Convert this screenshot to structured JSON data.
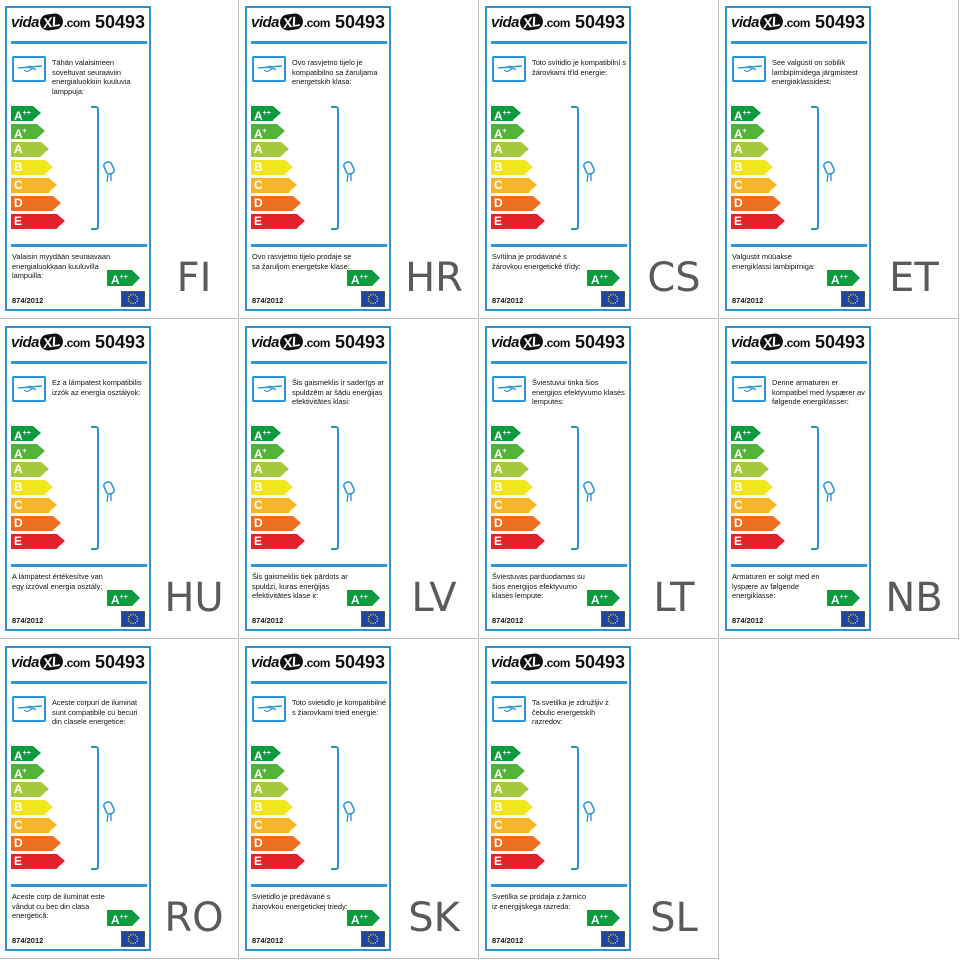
{
  "brand": {
    "prefix": "vida",
    "mark": "XL",
    "suffix": ".com"
  },
  "product_code": "50493",
  "regulation": "874/2012",
  "classes": [
    {
      "letter": "A",
      "sup": "++",
      "color": "#0a9b3c"
    },
    {
      "letter": "A",
      "sup": "+",
      "color": "#51b33a"
    },
    {
      "letter": "A",
      "sup": "",
      "color": "#a4c93b"
    },
    {
      "letter": "B",
      "sup": "",
      "color": "#f0e51f"
    },
    {
      "letter": "C",
      "sup": "",
      "color": "#f4b526"
    },
    {
      "letter": "D",
      "sup": "",
      "color": "#ec6f1f"
    },
    {
      "letter": "E",
      "sup": "",
      "color": "#e3222a"
    }
  ],
  "sold_class": {
    "letter": "A",
    "sup": "++"
  },
  "colors": {
    "frame": "#2a93d5",
    "eu_flag": "#1d44a8",
    "eu_stars": "#ffd400"
  },
  "labels": [
    {
      "lang": "FI",
      "intro": "Tähän valaisimeen soveltuvat seuraaviin energialuokkiin kuuluvia lamppuja:",
      "sold": "Valaisin myydään seuraavaan energialuokkaan kuuluvilla lampuilla:"
    },
    {
      "lang": "HR",
      "intro": "Ovo rasvjetno tijelo je kompatibilno sa žaruljama energetskih klasa:",
      "sold": "Ovo rasvjetno tijelo prodaje se sa žaruljom energetske klase:"
    },
    {
      "lang": "CS",
      "intro": "Toto svítidlo je kompatibilní s žárovkami tříd energie:",
      "sold": "Svítilna je prodávané s žárovkou energetické třídy:"
    },
    {
      "lang": "ET",
      "intro": "See valgusti on sobilik lambipirnidega järgmistest energiaklassidest:",
      "sold": "Valgustit müüakse energiklassi lambipirniga:"
    },
    {
      "lang": "HU",
      "intro": "Ez a lámpatest kompatibilis izzók az energia osztályok:",
      "sold": "A lámpatest értékesítve van egy izzóval energia osztály:"
    },
    {
      "lang": "LV",
      "intro": "Šis gaismeklis ir saderīgs ar spuldzēm ar šādu enerģijas efektivitātes klasi:",
      "sold": "Šis gaismeklis tiek pārdots ar spuldzi, kuras enerģijas efektivitātes klase ir:"
    },
    {
      "lang": "LT",
      "intro": "Šviestuvui tinka šios energijos efektyvumo klasės lemputės:",
      "sold": "Šviestuvas parduodamas su šios energijos efektyvumo klasės lempute:"
    },
    {
      "lang": "NB",
      "intro": "Denne armaturen er kompatibel med lyspærer av følgende energiklasser:",
      "sold": "Armaturen er solgt med en lyspære av følgende energiklasse:"
    },
    {
      "lang": "RO",
      "intro": "Aceste corpuri de iluminat sunt compatibile cu becuri din clasele energetice:",
      "sold": "Aceste corp de iluminat este vândut cu bec din clasa energetică:"
    },
    {
      "lang": "SK",
      "intro": "Toto svietidlo je kompatibilné s žiarovkami tried energie:",
      "sold": "Svietidlo je predávané s žiarovkou energetickej triedy:"
    },
    {
      "lang": "SL",
      "intro": "Ta svetilka je združljiv z čebulic energetskih razredov:",
      "sold": "Svetilka se prodaja z žarnico iz energijskega razreda:"
    }
  ]
}
